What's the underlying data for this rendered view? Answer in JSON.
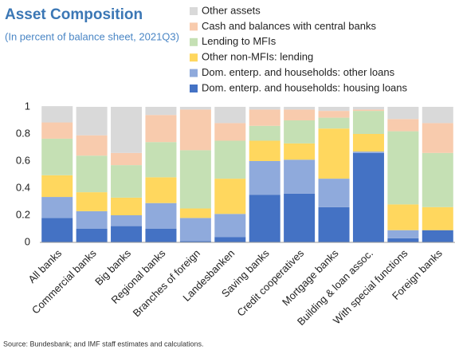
{
  "chart_data": {
    "type": "stacked_bar",
    "title": "Asset Composition",
    "subtitle": "(In percent of balance sheet, 2021Q3)",
    "source": "Source: Bundesbank; and IMF staff estimates and calculations.",
    "categories": [
      "All banks",
      "Commercial banks",
      "Big banks",
      "Regional banks",
      "Branches of foreign",
      "Landesbanken",
      "Saving banks",
      "Credit cooperatives",
      "Mortgage banks",
      "Building & loan assoc.",
      "With special functions",
      "Foreign banks"
    ],
    "series": [
      {
        "name": "Dom. enterp. and households: housing loans",
        "color": "#4472c4",
        "values": [
          0.18,
          0.1,
          0.12,
          0.1,
          0.01,
          0.04,
          0.35,
          0.36,
          0.26,
          0.66,
          0.03,
          0.09
        ]
      },
      {
        "name": "Dom. enterp. and households: other loans",
        "color": "#8faadc",
        "values": [
          0.155,
          0.13,
          0.08,
          0.19,
          0.17,
          0.17,
          0.25,
          0.25,
          0.21,
          0.01,
          0.06,
          0.0
        ]
      },
      {
        "name": "Other non-MFIs: lending",
        "color": "#ffd75e",
        "values": [
          0.16,
          0.14,
          0.13,
          0.19,
          0.07,
          0.26,
          0.15,
          0.12,
          0.37,
          0.13,
          0.19,
          0.17
        ]
      },
      {
        "name": "Lending to MFIs",
        "color": "#c5e0b4",
        "values": [
          0.27,
          0.27,
          0.24,
          0.26,
          0.43,
          0.28,
          0.11,
          0.17,
          0.08,
          0.17,
          0.54,
          0.4
        ]
      },
      {
        "name": "Cash and balances with central banks",
        "color": "#f8cbad",
        "values": [
          0.12,
          0.15,
          0.09,
          0.2,
          0.3,
          0.13,
          0.12,
          0.08,
          0.05,
          0.01,
          0.09,
          0.22
        ]
      },
      {
        "name": "Other assets",
        "color": "#d9d9d9",
        "values": [
          0.12,
          0.21,
          0.34,
          0.06,
          0.02,
          0.12,
          0.02,
          0.02,
          0.03,
          0.02,
          0.09,
          0.12
        ]
      }
    ],
    "ylim": [
      0,
      1
    ],
    "yticks": [
      0,
      0.2,
      0.4,
      0.6,
      0.8,
      1
    ]
  }
}
